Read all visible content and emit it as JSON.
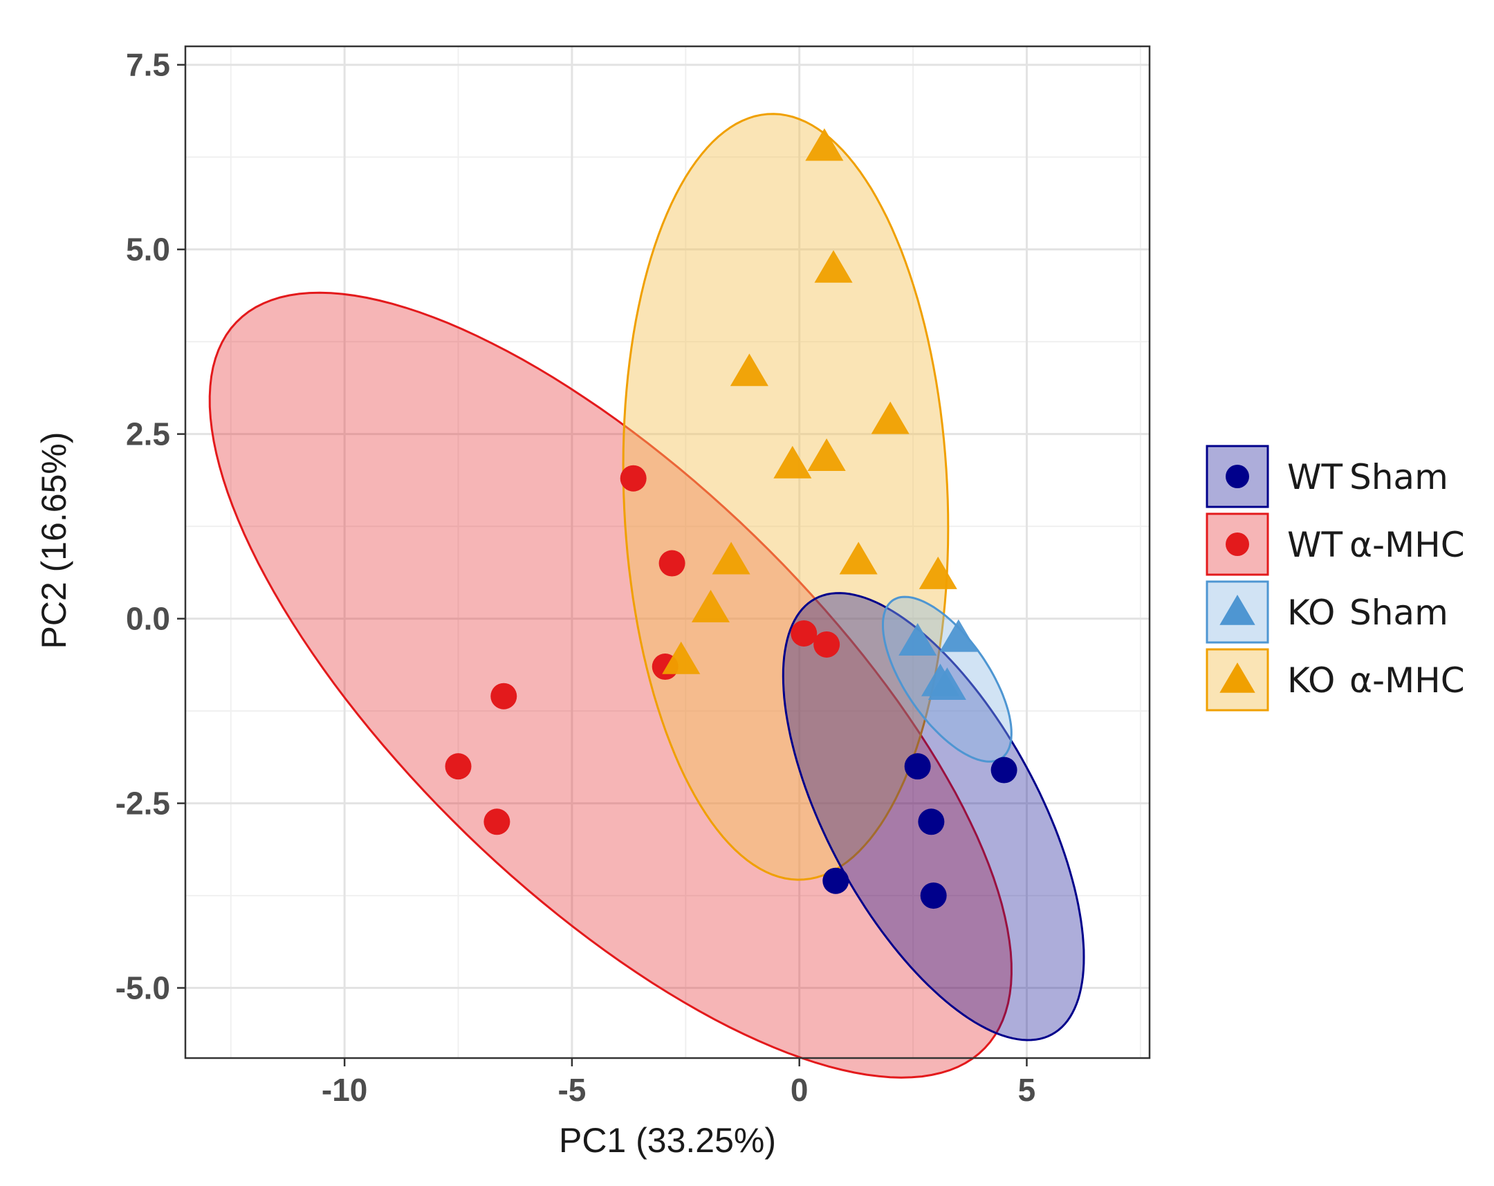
{
  "chart_data": {
    "type": "scatter",
    "title": "",
    "xlabel": "PC1 (33.25%)",
    "ylabel": "PC2 (16.65%)",
    "xlim": [
      -13.5,
      7.7
    ],
    "ylim": [
      -5.95,
      7.75
    ],
    "xticks": [
      -10,
      -5,
      0,
      5
    ],
    "xtick_labels": [
      "-10",
      "-5",
      "0",
      "5"
    ],
    "yticks": [
      -5,
      -2.5,
      0,
      2.5,
      5,
      7.5
    ],
    "ytick_labels": [
      "-5.0",
      "-2.5",
      "0.0",
      "2.5",
      "5.0",
      "7.5"
    ],
    "grid": true,
    "legend_position": "right",
    "series": [
      {
        "name": "WT Sham",
        "group": "WT",
        "treatment": "Sham",
        "marker": "circle",
        "color": "#00008B",
        "fill": "#00008B",
        "fill_opacity": 0.32,
        "ellipse": {
          "center": [
            2.95,
            -2.68
          ],
          "rx": 4.05,
          "ry": 1.92,
          "rotation_deg": -41
        },
        "points": [
          [
            2.6,
            -2.0
          ],
          [
            4.5,
            -2.05
          ],
          [
            2.9,
            -2.75
          ],
          [
            0.8,
            -3.55
          ],
          [
            2.95,
            -3.75
          ]
        ]
      },
      {
        "name": "WT α-MHC",
        "group": "WT",
        "treatment": "α-MHC",
        "marker": "circle",
        "color": "#E31A1C",
        "fill": "#E31A1C",
        "fill_opacity": 0.32,
        "ellipse": {
          "center": [
            -4.15,
            -0.9
          ],
          "rx": 9.75,
          "ry": 3.3,
          "rotation_deg": -27
        },
        "points": [
          [
            -3.65,
            1.9
          ],
          [
            -2.8,
            0.75
          ],
          [
            0.1,
            -0.2
          ],
          [
            0.6,
            -0.35
          ],
          [
            -2.95,
            -0.65
          ],
          [
            -6.5,
            -1.05
          ],
          [
            -7.5,
            -2.0
          ],
          [
            -6.65,
            -2.75
          ]
        ]
      },
      {
        "name": "KO Sham",
        "group": "KO",
        "treatment": "Sham",
        "marker": "triangle",
        "color": "#4E96D2",
        "fill": "#8DB9E3",
        "fill_opacity": 0.4,
        "ellipse": {
          "center": [
            3.25,
            -0.82
          ],
          "rx": 1.65,
          "ry": 0.72,
          "rotation_deg": -35
        },
        "points": [
          [
            2.6,
            -0.35
          ],
          [
            3.5,
            -0.3
          ],
          [
            3.1,
            -0.9
          ],
          [
            3.25,
            -0.95
          ]
        ]
      },
      {
        "name": "KO α-MHC",
        "group": "KO",
        "treatment": "α-MHC",
        "marker": "triangle",
        "color": "#F0A000",
        "fill": "#F5C35A",
        "fill_opacity": 0.45,
        "ellipse": {
          "center": [
            -0.3,
            1.65
          ],
          "rx": 5.2,
          "ry": 3.55,
          "rotation_deg": -84
        },
        "points": [
          [
            0.55,
            6.35
          ],
          [
            0.75,
            4.7
          ],
          [
            -1.1,
            3.3
          ],
          [
            2.0,
            2.65
          ],
          [
            -0.15,
            2.05
          ],
          [
            0.6,
            2.15
          ],
          [
            -1.5,
            0.75
          ],
          [
            1.3,
            0.75
          ],
          [
            3.05,
            0.55
          ],
          [
            -1.95,
            0.1
          ],
          [
            -2.6,
            -0.6
          ]
        ]
      }
    ]
  }
}
